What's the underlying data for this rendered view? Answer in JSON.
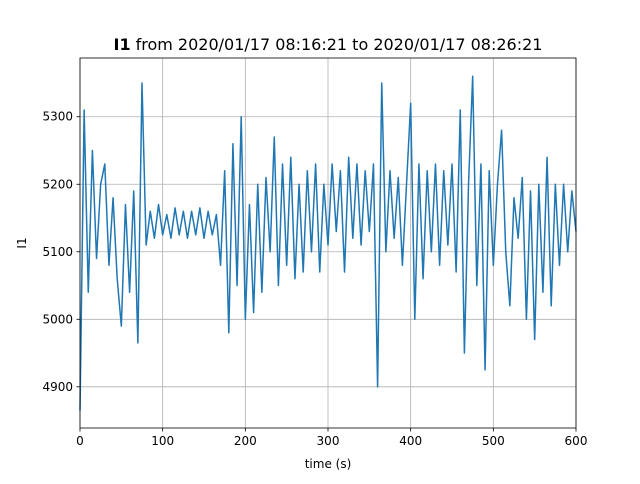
{
  "chart_data": {
    "type": "line",
    "title": {
      "variable": "I1",
      "text": "from 2020/01/17 08:16:21 to 2020/01/17 08:26:21"
    },
    "x_label": "time (s)",
    "y_label": "I1",
    "color": "#1f77b4",
    "grid": true,
    "xlim": [
      0,
      600
    ],
    "xticks": [
      0,
      100,
      200,
      300,
      400,
      500,
      600
    ],
    "ylim": [
      4839,
      5387
    ],
    "yticks": [
      4900,
      5000,
      5100,
      5200,
      5300
    ],
    "x": [
      0,
      5,
      10,
      15,
      20,
      25,
      30,
      35,
      40,
      45,
      50,
      55,
      60,
      65,
      70,
      75,
      80,
      85,
      90,
      95,
      100,
      105,
      110,
      115,
      120,
      125,
      130,
      135,
      140,
      145,
      150,
      155,
      160,
      165,
      170,
      175,
      180,
      185,
      190,
      195,
      200,
      205,
      210,
      215,
      220,
      225,
      230,
      235,
      240,
      245,
      250,
      255,
      260,
      265,
      270,
      275,
      280,
      285,
      290,
      295,
      300,
      305,
      310,
      315,
      320,
      325,
      330,
      335,
      340,
      345,
      350,
      355,
      360,
      365,
      370,
      375,
      380,
      385,
      390,
      395,
      400,
      405,
      410,
      415,
      420,
      425,
      430,
      435,
      440,
      445,
      450,
      455,
      460,
      465,
      470,
      475,
      480,
      485,
      490,
      495,
      500,
      505,
      510,
      515,
      520,
      525,
      530,
      535,
      540,
      545,
      550,
      555,
      560,
      565,
      570,
      575,
      580,
      585,
      590,
      595,
      600
    ],
    "values": [
      4865,
      5310,
      5040,
      5250,
      5090,
      5200,
      5230,
      5080,
      5180,
      5060,
      4990,
      5170,
      5040,
      5190,
      4965,
      5350,
      5110,
      5160,
      5120,
      5170,
      5125,
      5155,
      5120,
      5165,
      5125,
      5160,
      5120,
      5160,
      5125,
      5165,
      5120,
      5160,
      5125,
      5155,
      5080,
      5220,
      4980,
      5260,
      5050,
      5300,
      5000,
      5170,
      5010,
      5200,
      5040,
      5210,
      5100,
      5270,
      5050,
      5230,
      5080,
      5240,
      5060,
      5200,
      5070,
      5220,
      5100,
      5230,
      5070,
      5200,
      5110,
      5230,
      5130,
      5220,
      5070,
      5240,
      5120,
      5230,
      5110,
      5220,
      5130,
      5230,
      4900,
      5350,
      5100,
      5220,
      5120,
      5210,
      5080,
      5200,
      5320,
      5000,
      5230,
      5060,
      5220,
      5100,
      5230,
      5080,
      5220,
      5110,
      5230,
      5070,
      5310,
      4950,
      5200,
      5360,
      5050,
      5230,
      4925,
      5220,
      5080,
      5200,
      5280,
      5100,
      5020,
      5180,
      5120,
      5210,
      5000,
      5190,
      4970,
      5200,
      5040,
      5240,
      5020,
      5200,
      5080,
      5200,
      5100,
      5190,
      5130
    ]
  }
}
